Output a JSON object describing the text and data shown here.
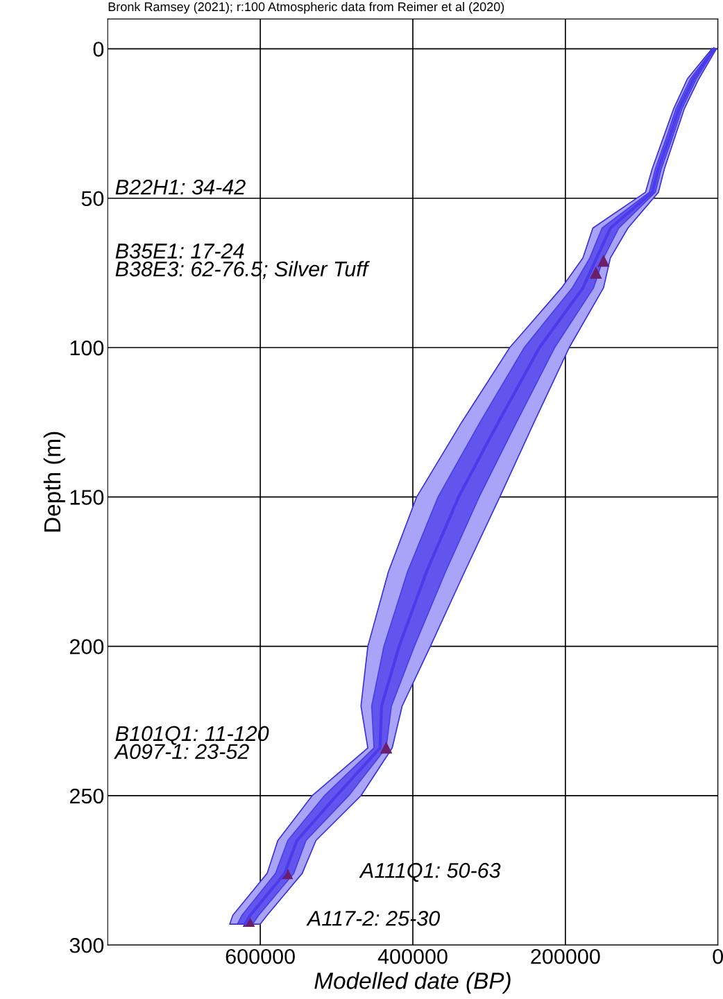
{
  "chart_data": {
    "type": "line",
    "orientation": "horizontal",
    "xlabel": "Modelled date (BP)",
    "ylabel": "Depth (m)",
    "xlim": [
      800000,
      0
    ],
    "xticks": [
      600000,
      400000,
      200000,
      0
    ],
    "ylim": [
      300,
      -10
    ],
    "yticks": [
      0,
      50,
      100,
      150,
      200,
      250,
      300
    ],
    "grid": true,
    "legend": false,
    "series": [
      {
        "color": "#a9a4f7",
        "x": [
          0,
          10,
          20,
          30,
          40,
          48,
          60,
          70,
          80,
          100,
          125,
          150,
          175,
          200,
          220,
          234,
          250,
          265,
          276,
          290,
          293
        ],
        "values": [
          null,
          null,
          null,
          null,
          null,
          null,
          null,
          null,
          null,
          null,
          null,
          null,
          null,
          null,
          null,
          null,
          null,
          null,
          null,
          null,
          null
        ],
        "lower": [
          8000,
          40000,
          58000,
          72000,
          86000,
          95000,
          164000,
          177000,
          205000,
          273000,
          336000,
          395000,
          432000,
          459000,
          468000,
          459000,
          532000,
          577000,
          591000,
          636000,
          640000
        ],
        "upper": [
          2000,
          25000,
          44000,
          57000,
          70000,
          78000,
          118000,
          141000,
          150000,
          195000,
          241000,
          286000,
          332000,
          377000,
          414000,
          427000,
          468000,
          527000,
          545000,
          591000,
          600000
        ]
      },
      {
        "color": "#4b3bea",
        "x": [
          0,
          10,
          20,
          30,
          40,
          48,
          60,
          70,
          80,
          100,
          125,
          150,
          175,
          200,
          220,
          234,
          250,
          265,
          276,
          290,
          293
        ],
        "values": [
          5000,
          32000,
          51000,
          64000,
          78000,
          86000,
          141000,
          159000,
          177000,
          234000,
          288000,
          340000,
          382000,
          418000,
          441000,
          443000,
          500000,
          552000,
          568000,
          613000,
          620000
        ],
        "lower": [
          6500,
          36000,
          55000,
          68000,
          82000,
          90000,
          152000,
          168000,
          191000,
          254000,
          312000,
          367000,
          407000,
          438000,
          454000,
          451000,
          516000,
          564000,
          580000,
          624000,
          630000
        ],
        "upper": [
          3500,
          28000,
          47000,
          60000,
          74000,
          82000,
          130000,
          150000,
          163000,
          214000,
          264000,
          313000,
          357000,
          398000,
          428000,
          435000,
          484000,
          540000,
          556000,
          602000,
          610000
        ]
      },
      {
        "type": "scatter",
        "color": "#6b1f6b",
        "marker": "triangle",
        "x": [
          71,
          75,
          234,
          276,
          292
        ],
        "values": [
          150000,
          160000,
          435000,
          565000,
          615000
        ]
      }
    ],
    "annotations": [
      "Bronk Ramsey (2021); r:100 Atmospheric data from Reimer et al (2020)",
      "B22H1: 34-42",
      "B35E1: 17-24",
      "B38E3: 62-76.5; Silver Tuff",
      "B101Q1: 11-120",
      "A097-1: 23-52",
      "A111Q1: 50-63",
      "A117-2: 25-30"
    ]
  }
}
